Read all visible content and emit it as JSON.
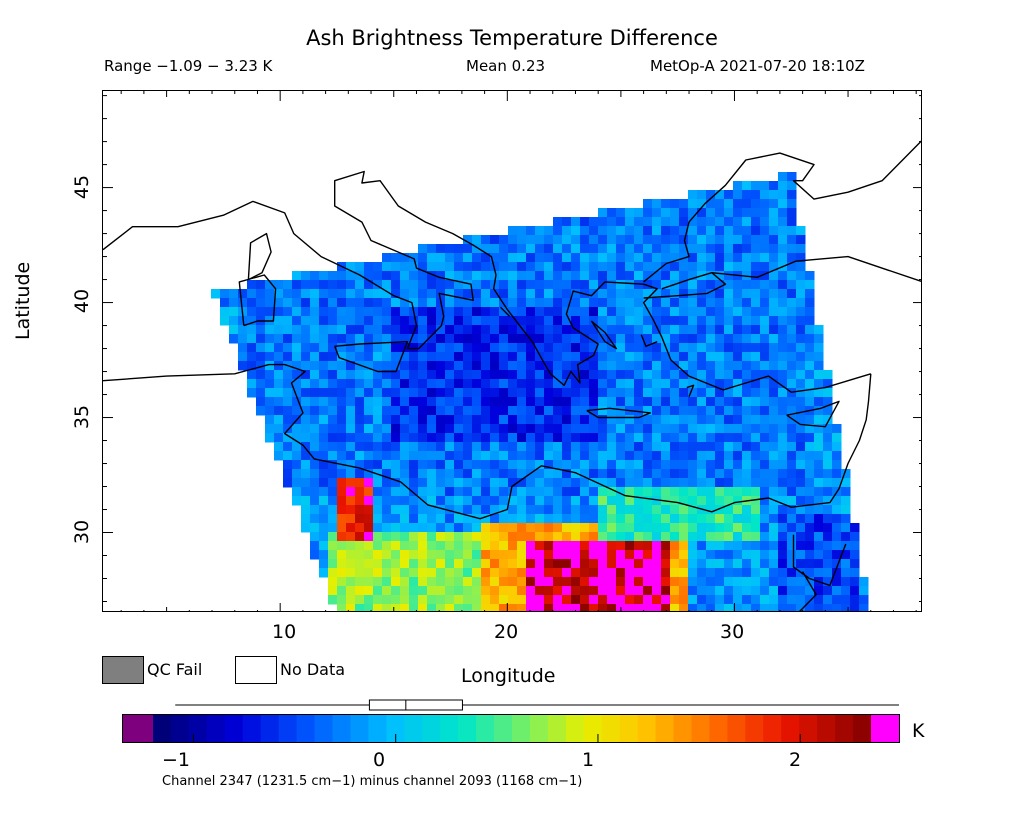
{
  "title": "Ash Brightness Temperature Difference",
  "range_text": "Range −1.09 − 3.23 K",
  "mean_text": "Mean 0.23",
  "satellite_text": "MetOp-A 2021-07-20 18:10Z",
  "axes": {
    "ylabel": "Latitude",
    "xlabel": "Longitude",
    "lon_range": [
      2.2,
      38.3
    ],
    "lat_range": [
      26.5,
      49.2
    ],
    "yticks": [
      "45",
      "40",
      "35",
      "30"
    ],
    "xticks": [
      "10",
      "20",
      "30"
    ]
  },
  "legend": {
    "qc_fail": {
      "label": "QC Fail",
      "color": "#7f7f7f"
    },
    "no_data": {
      "label": "No Data",
      "color": "#ffffff"
    }
  },
  "colorbar": {
    "unit": "K",
    "min": -1.25,
    "max": 2.45,
    "underflow_color": "#7f007f",
    "overflow_color": "#ff00ff",
    "ticks": [
      "−1",
      "0",
      "1",
      "2"
    ],
    "boxplot": {
      "min": -1.09,
      "q1": -0.13,
      "median": 0.05,
      "q3": 0.33,
      "max": 3.23
    }
  },
  "channel_note": "Channel 2347 (1231.5 cm−1) minus channel 2093 (1168 cm−1)",
  "chart_data": {
    "type": "heatmap",
    "title": "Ash Brightness Temperature Difference",
    "xlabel": "Longitude",
    "ylabel": "Latitude",
    "xlim": [
      2.2,
      38.3
    ],
    "ylim": [
      26.5,
      49.2
    ],
    "value_range": [
      -1.09,
      3.23
    ],
    "mean": 0.23,
    "unit": "K",
    "swath_corners": {
      "nw": [
        7.0,
        40.5
      ],
      "ne": [
        32.5,
        45.6
      ],
      "se": [
        36.0,
        26.5
      ],
      "sw": [
        12.5,
        26.5
      ]
    },
    "regions": [
      {
        "lon": [
          8,
          33
        ],
        "lat": [
          31.5,
          45.5
        ],
        "value": -0.3
      },
      {
        "lon": [
          15,
          24
        ],
        "lat": [
          34,
          40
        ],
        "value": -0.6
      },
      {
        "lon": [
          21,
          27
        ],
        "lat": [
          26.5,
          29.5
        ],
        "value": 2.2
      },
      {
        "lon": [
          19,
          28
        ],
        "lat": [
          26.5,
          30.5
        ],
        "value": 1.3
      },
      {
        "lon": [
          12,
          19
        ],
        "lat": [
          26.5,
          30
        ],
        "value": 0.7
      },
      {
        "lon": [
          12.4,
          14.0
        ],
        "lat": [
          29.5,
          32.5
        ],
        "value": 1.9
      },
      {
        "lon": [
          24,
          31
        ],
        "lat": [
          29.5,
          32
        ],
        "value": 0.4
      },
      {
        "lon": [
          32,
          35.5
        ],
        "lat": [
          26.5,
          31
        ],
        "value": -0.5
      }
    ]
  }
}
